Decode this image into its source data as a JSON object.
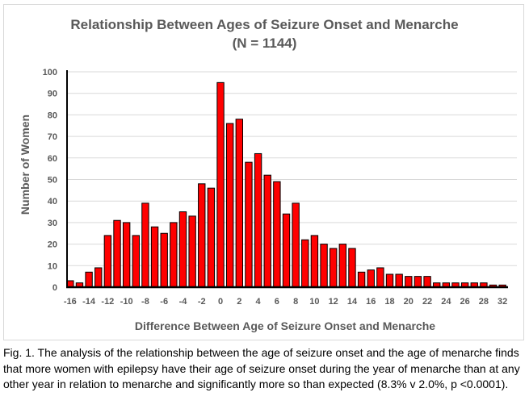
{
  "chart_data": {
    "type": "bar",
    "title": "Relationship Between Ages of Seizure Onset and  Menarche",
    "subtitle": "(N = 1144)",
    "xlabel": "Difference Between Age of Seizure Onset and Menarche",
    "ylabel": "Number of Women",
    "ylim": [
      0,
      100
    ],
    "yticks": [
      0,
      10,
      20,
      30,
      40,
      50,
      60,
      70,
      80,
      90,
      100
    ],
    "grid": true,
    "legend": "none",
    "bar_color": "#ff0000",
    "bar_edge_color": "#000000",
    "categories": [
      "-16",
      "-15",
      "-14",
      "-13",
      "-12",
      "-11",
      "-10",
      "-9",
      "-8",
      "-7",
      "-6",
      "-5",
      "-4",
      "-3",
      "-2",
      "-1",
      "0",
      "1",
      "2",
      "3",
      "4",
      "5",
      "6",
      "7",
      "8",
      "9",
      "10",
      "11",
      "12",
      "13",
      "14",
      "15",
      "16",
      "17",
      "18",
      "19",
      "20",
      "21",
      "22",
      "23",
      "24",
      "25",
      "26",
      "27",
      "28",
      "29",
      "32"
    ],
    "xtick_labels": [
      "-16",
      "-14",
      "-12",
      "-10",
      "-8",
      "-6",
      "-4",
      "-2",
      "0",
      "2",
      "4",
      "6",
      "8",
      "10",
      "12",
      "14",
      "16",
      "18",
      "20",
      "22",
      "24",
      "26",
      "28",
      "32"
    ],
    "values": [
      3,
      2,
      7,
      9,
      24,
      31,
      30,
      24,
      39,
      28,
      25,
      30,
      35,
      33,
      48,
      46,
      95,
      76,
      78,
      58,
      62,
      52,
      49,
      34,
      39,
      22,
      24,
      20,
      18,
      20,
      18,
      7,
      8,
      9,
      6,
      6,
      5,
      5,
      5,
      2,
      2,
      2,
      2,
      2,
      2,
      1,
      1
    ]
  },
  "caption": "Fig. 1.  The analysis of the relationship between the age of seizure onset and the age of menarche finds that more women with epilepsy have their age of seizure onset during the year of menarche than at any other year in relation to menarche and significantly more so than expected (8.3% v 2.0%, p <0.0001)."
}
